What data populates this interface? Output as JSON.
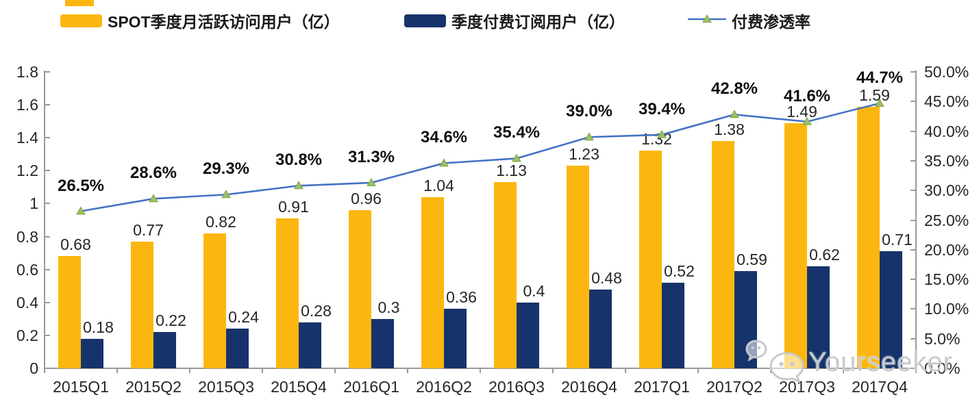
{
  "legend": [
    {
      "label": "SPOT季度月活跃访问用户（亿）",
      "color": "#FBB70F",
      "type": "bar"
    },
    {
      "label": "季度付费订阅用户（亿）",
      "color": "#16336B",
      "type": "bar"
    },
    {
      "label": "付费渗透率",
      "color": "#4472C4",
      "marker_color": "#9CC063",
      "type": "line"
    }
  ],
  "watermark": {
    "text": "Yourseeker",
    "icon": "wechat-icon",
    "color": "#c6cacd"
  },
  "chart_data": {
    "type": "bar",
    "subtype": "grouped-bars-with-line",
    "categories": [
      "2015Q1",
      "2015Q2",
      "2015Q3",
      "2015Q4",
      "2016Q1",
      "2016Q2",
      "2016Q3",
      "2016Q4",
      "2017Q1",
      "2017Q2",
      "2017Q3",
      "2017Q4"
    ],
    "series": [
      {
        "name": "SPOT季度月活跃访问用户（亿）",
        "type": "bar",
        "axis": "left",
        "color": "#FBB70F",
        "values": [
          0.68,
          0.77,
          0.82,
          0.91,
          0.96,
          1.04,
          1.13,
          1.23,
          1.32,
          1.38,
          1.49,
          1.59
        ],
        "labels": [
          "0.68",
          "0.77",
          "0.82",
          "0.91",
          "0.96",
          "1.04",
          "1.13",
          "1.23",
          "1.32",
          "1.38",
          "1.49",
          "1.59"
        ]
      },
      {
        "name": "季度付费订阅用户（亿）",
        "type": "bar",
        "axis": "left",
        "color": "#16336B",
        "values": [
          0.18,
          0.22,
          0.24,
          0.28,
          0.3,
          0.36,
          0.4,
          0.48,
          0.52,
          0.59,
          0.62,
          0.71
        ],
        "labels": [
          "0.18",
          "0.22",
          "0.24",
          "0.28",
          "0.3",
          "0.36",
          "0.4",
          "0.48",
          "0.52",
          "0.59",
          "0.62",
          "0.71"
        ]
      },
      {
        "name": "付费渗透率",
        "type": "line",
        "axis": "right",
        "color": "#4472C4",
        "marker": "triangle-up",
        "marker_color": "#9CC063",
        "marker_edge_color": "#7FA544",
        "values": [
          26.5,
          28.6,
          29.3,
          30.8,
          31.3,
          34.6,
          35.4,
          39.0,
          39.4,
          42.8,
          41.6,
          44.7
        ],
        "labels": [
          "26.5%",
          "28.6%",
          "29.3%",
          "30.8%",
          "31.3%",
          "34.6%",
          "35.4%",
          "39.0%",
          "39.4%",
          "42.8%",
          "41.6%",
          "44.7%"
        ]
      }
    ],
    "left_axis": {
      "min": 0,
      "max": 1.8,
      "ticks": [
        "0",
        "0.2",
        "0.4",
        "0.6",
        "0.8",
        "1",
        "1.2",
        "1.4",
        "1.6",
        "1.8"
      ]
    },
    "right_axis": {
      "min": 0,
      "max": 50,
      "ticks": [
        "0.0%",
        "5.0%",
        "10.0%",
        "15.0%",
        "20.0%",
        "25.0%",
        "30.0%",
        "35.0%",
        "40.0%",
        "45.0%",
        "50.0%"
      ]
    },
    "grid": false,
    "legend_position": "top",
    "title": "",
    "xlabel": "",
    "ylabel_left": "",
    "ylabel_right": ""
  }
}
